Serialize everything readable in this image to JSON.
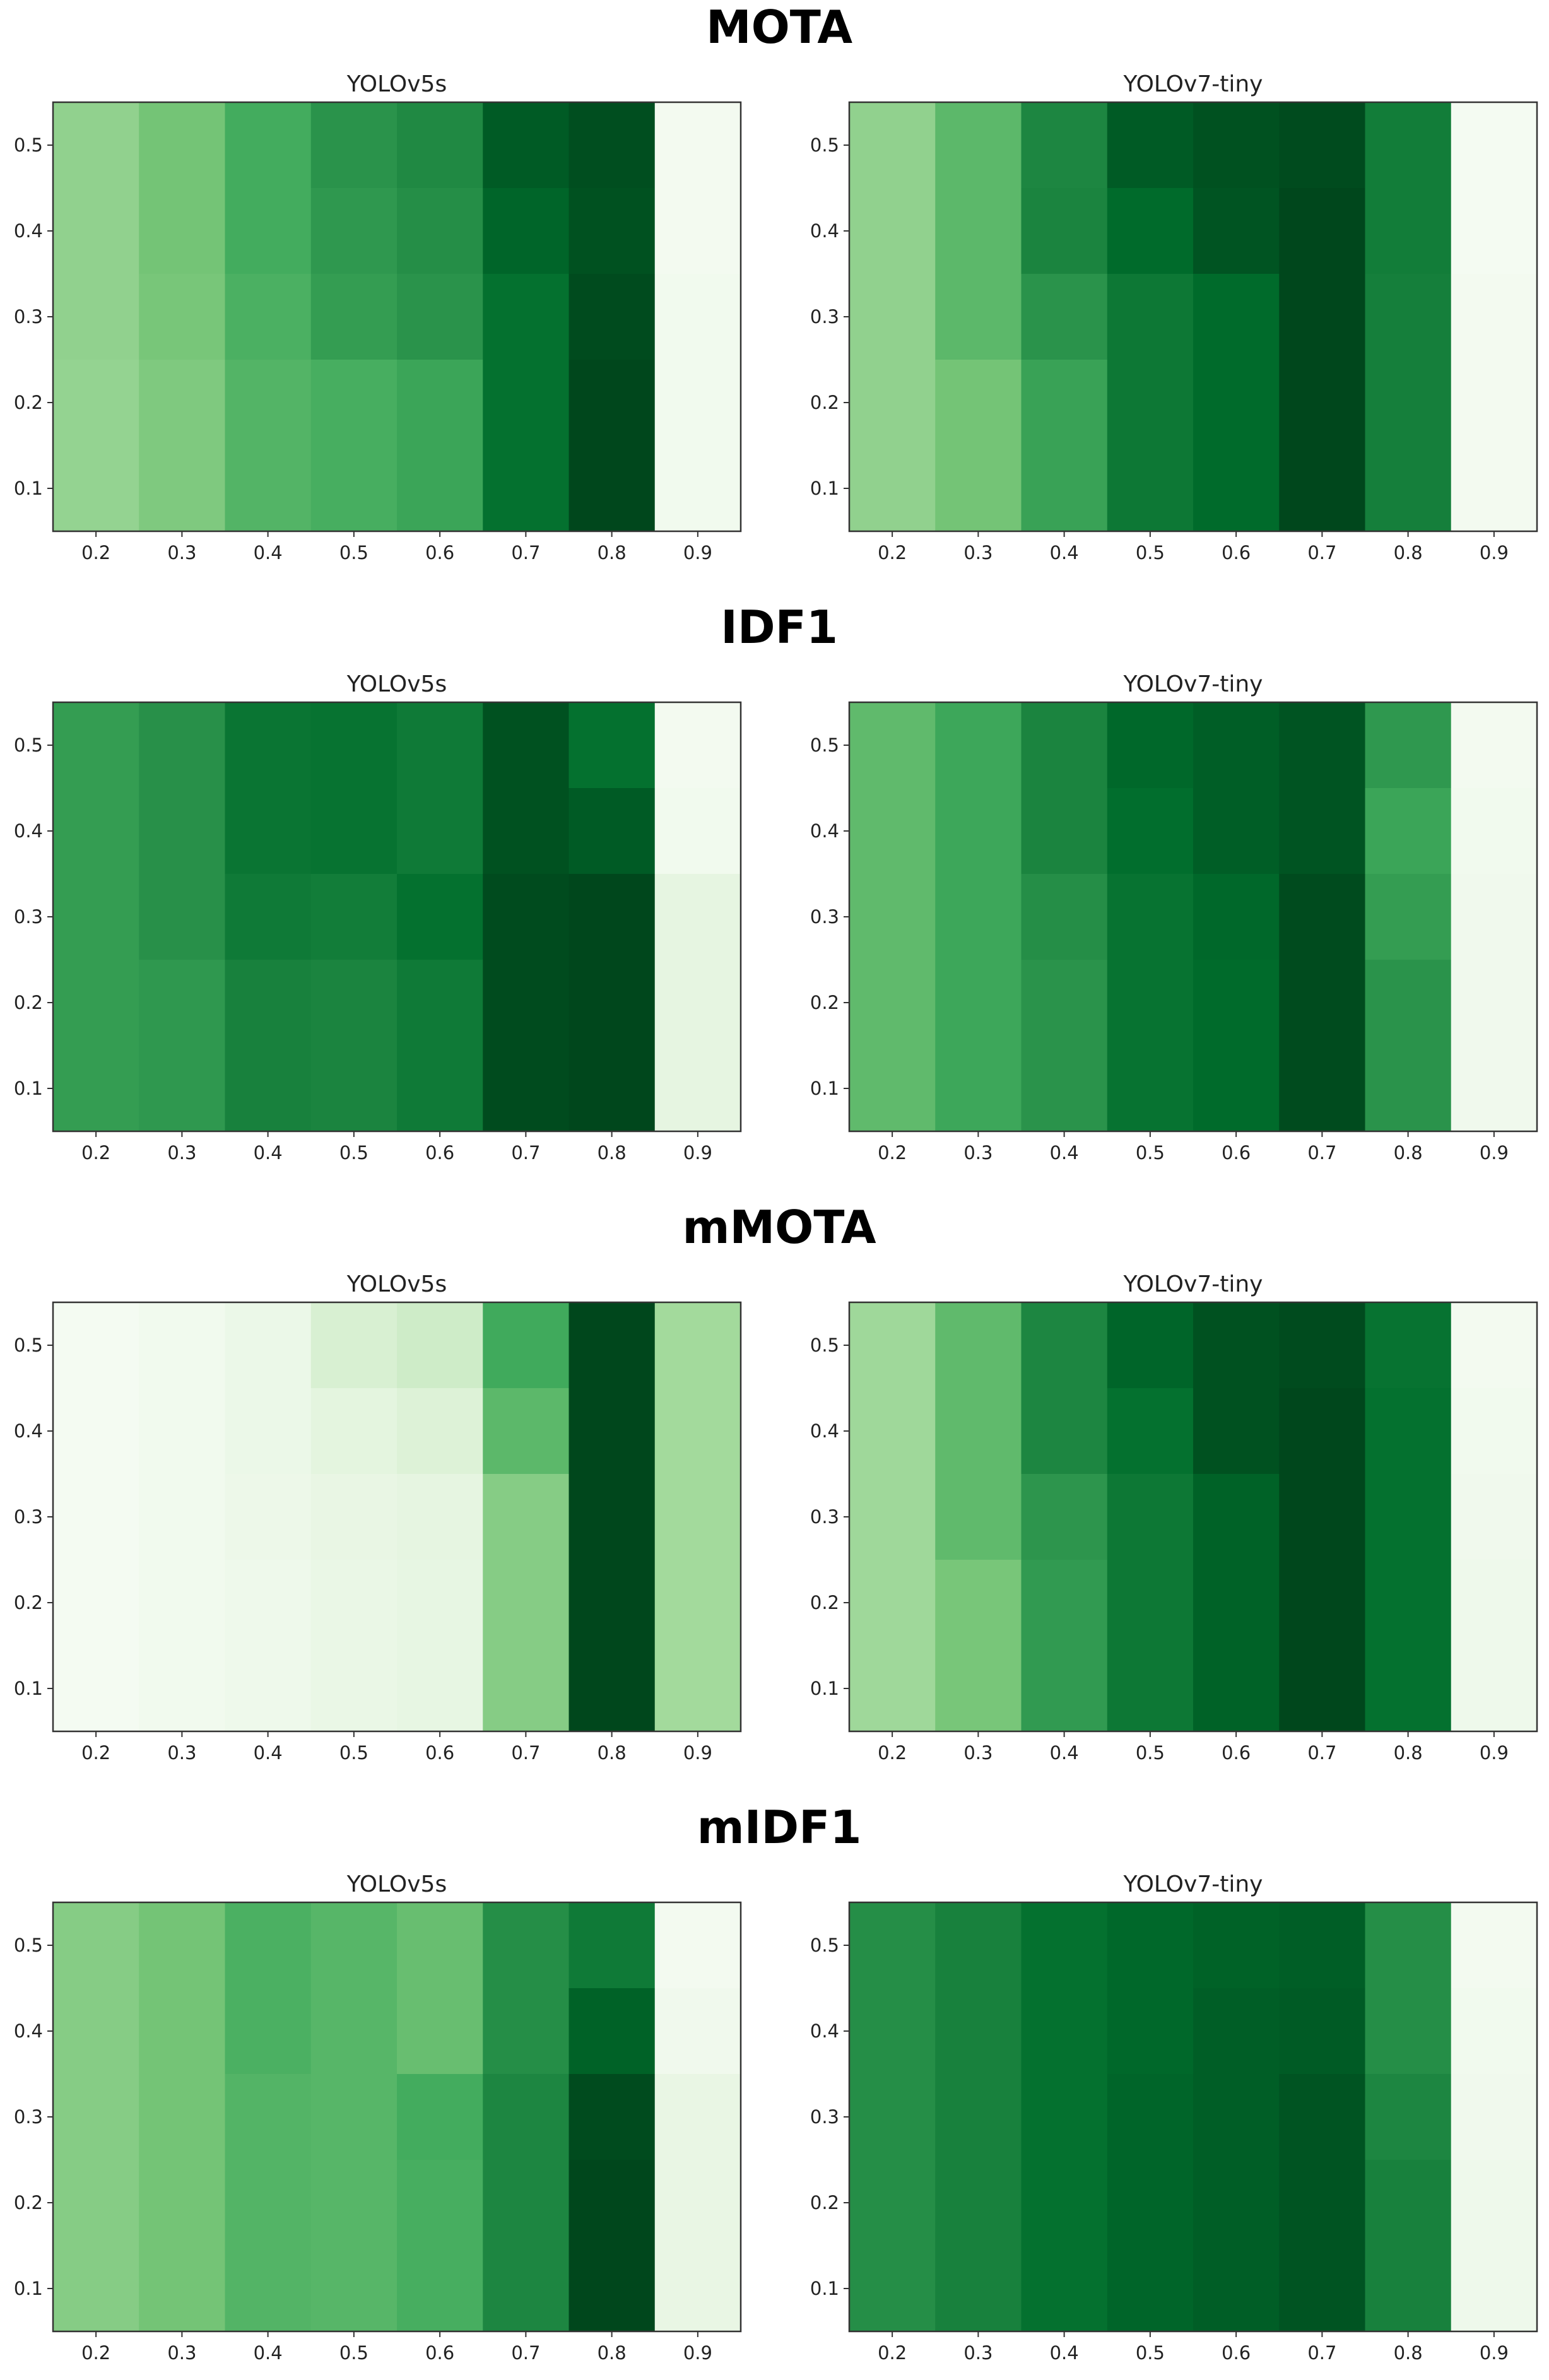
{
  "page": {
    "description_free": true
  },
  "chart_data": [
    {
      "type": "heatmap",
      "metric": "MOTA",
      "section_title": "MOTA",
      "panels": [
        {
          "title": "YOLOv5s",
          "x_ticks": [
            "0.2",
            "0.3",
            "0.4",
            "0.5",
            "0.6",
            "0.7",
            "0.8",
            "0.9"
          ],
          "y_ticks": [
            "0.5",
            "0.4",
            "0.3",
            "0.2",
            "0.1"
          ],
          "colormap": "Greens",
          "intensity_rows_top_to_bottom": [
            [
              0.42,
              0.5,
              0.62,
              0.72,
              0.76,
              0.93,
              0.97,
              0.03
            ],
            [
              0.42,
              0.5,
              0.62,
              0.7,
              0.74,
              0.9,
              0.96,
              0.03
            ],
            [
              0.42,
              0.49,
              0.6,
              0.68,
              0.72,
              0.86,
              0.98,
              0.04
            ],
            [
              0.41,
              0.47,
              0.58,
              0.61,
              0.65,
              0.86,
              0.99,
              0.04
            ],
            [
              0.41,
              0.47,
              0.58,
              0.61,
              0.65,
              0.86,
              0.99,
              0.04
            ]
          ]
        },
        {
          "title": "YOLOv7-tiny",
          "x_ticks": [
            "0.2",
            "0.3",
            "0.4",
            "0.5",
            "0.6",
            "0.7",
            "0.8",
            "0.9"
          ],
          "y_ticks": [
            "0.5",
            "0.4",
            "0.3",
            "0.2",
            "0.1"
          ],
          "colormap": "Greens",
          "intensity_rows_top_to_bottom": [
            [
              0.42,
              0.56,
              0.77,
              0.93,
              0.96,
              0.98,
              0.81,
              0.02
            ],
            [
              0.42,
              0.56,
              0.78,
              0.88,
              0.95,
              0.99,
              0.81,
              0.02
            ],
            [
              0.42,
              0.56,
              0.72,
              0.83,
              0.88,
              0.99,
              0.8,
              0.03
            ],
            [
              0.42,
              0.5,
              0.66,
              0.83,
              0.88,
              0.99,
              0.8,
              0.03
            ],
            [
              0.42,
              0.5,
              0.66,
              0.83,
              0.88,
              0.99,
              0.8,
              0.03
            ]
          ]
        }
      ]
    },
    {
      "type": "heatmap",
      "metric": "IDF1",
      "section_title": "IDF1",
      "panels": [
        {
          "title": "YOLOv5s",
          "x_ticks": [
            "0.2",
            "0.3",
            "0.4",
            "0.5",
            "0.6",
            "0.7",
            "0.8",
            "0.9"
          ],
          "y_ticks": [
            "0.5",
            "0.4",
            "0.3",
            "0.2",
            "0.1"
          ],
          "colormap": "Greens",
          "intensity_rows_top_to_bottom": [
            [
              0.68,
              0.73,
              0.84,
              0.85,
              0.82,
              0.96,
              0.86,
              0.03
            ],
            [
              0.68,
              0.73,
              0.84,
              0.85,
              0.82,
              0.96,
              0.93,
              0.04
            ],
            [
              0.68,
              0.73,
              0.82,
              0.81,
              0.86,
              0.98,
              0.99,
              0.12
            ],
            [
              0.68,
              0.7,
              0.79,
              0.78,
              0.82,
              0.98,
              0.99,
              0.12
            ],
            [
              0.68,
              0.7,
              0.79,
              0.78,
              0.82,
              0.98,
              0.99,
              0.12
            ]
          ]
        },
        {
          "title": "YOLOv7-tiny",
          "x_ticks": [
            "0.2",
            "0.3",
            "0.4",
            "0.5",
            "0.6",
            "0.7",
            "0.8",
            "0.9"
          ],
          "y_ticks": [
            "0.5",
            "0.4",
            "0.3",
            "0.2",
            "0.1"
          ],
          "colormap": "Greens",
          "intensity_rows_top_to_bottom": [
            [
              0.55,
              0.64,
              0.78,
              0.89,
              0.92,
              0.95,
              0.7,
              0.03
            ],
            [
              0.55,
              0.64,
              0.78,
              0.87,
              0.92,
              0.95,
              0.65,
              0.04
            ],
            [
              0.55,
              0.64,
              0.74,
              0.85,
              0.89,
              0.98,
              0.68,
              0.05
            ],
            [
              0.55,
              0.64,
              0.72,
              0.85,
              0.88,
              0.98,
              0.72,
              0.05
            ],
            [
              0.55,
              0.64,
              0.72,
              0.85,
              0.88,
              0.98,
              0.72,
              0.05
            ]
          ]
        }
      ]
    },
    {
      "type": "heatmap",
      "metric": "mMOTA",
      "section_title": "mMOTA",
      "panels": [
        {
          "title": "YOLOv5s",
          "x_ticks": [
            "0.2",
            "0.3",
            "0.4",
            "0.5",
            "0.6",
            "0.7",
            "0.8",
            "0.9"
          ],
          "y_ticks": [
            "0.5",
            "0.4",
            "0.3",
            "0.2",
            "0.1"
          ],
          "colormap": "Greens",
          "intensity_rows_top_to_bottom": [
            [
              0.02,
              0.04,
              0.08,
              0.18,
              0.22,
              0.63,
              0.99,
              0.37
            ],
            [
              0.02,
              0.04,
              0.08,
              0.13,
              0.16,
              0.56,
              0.99,
              0.37
            ],
            [
              0.02,
              0.04,
              0.07,
              0.1,
              0.12,
              0.45,
              0.99,
              0.37
            ],
            [
              0.02,
              0.04,
              0.06,
              0.09,
              0.11,
              0.45,
              0.99,
              0.37
            ],
            [
              0.02,
              0.04,
              0.06,
              0.09,
              0.11,
              0.45,
              0.99,
              0.37
            ]
          ]
        },
        {
          "title": "YOLOv7-tiny",
          "x_ticks": [
            "0.2",
            "0.3",
            "0.4",
            "0.5",
            "0.6",
            "0.7",
            "0.8",
            "0.9"
          ],
          "y_ticks": [
            "0.5",
            "0.4",
            "0.3",
            "0.2",
            "0.1"
          ],
          "colormap": "Greens",
          "intensity_rows_top_to_bottom": [
            [
              0.38,
              0.55,
              0.77,
              0.9,
              0.96,
              0.98,
              0.85,
              0.03
            ],
            [
              0.38,
              0.55,
              0.77,
              0.86,
              0.96,
              0.99,
              0.86,
              0.04
            ],
            [
              0.38,
              0.55,
              0.71,
              0.83,
              0.91,
              0.99,
              0.86,
              0.05
            ],
            [
              0.38,
              0.49,
              0.69,
              0.83,
              0.91,
              0.99,
              0.86,
              0.06
            ],
            [
              0.38,
              0.49,
              0.69,
              0.83,
              0.91,
              0.99,
              0.86,
              0.06
            ]
          ]
        }
      ]
    },
    {
      "type": "heatmap",
      "metric": "mIDF1",
      "section_title": "mIDF1",
      "panels": [
        {
          "title": "YOLOv5s",
          "x_ticks": [
            "0.2",
            "0.3",
            "0.4",
            "0.5",
            "0.6",
            "0.7",
            "0.8",
            "0.9"
          ],
          "y_ticks": [
            "0.5",
            "0.4",
            "0.3",
            "0.2",
            "0.1"
          ],
          "colormap": "Greens",
          "intensity_rows_top_to_bottom": [
            [
              0.45,
              0.5,
              0.6,
              0.57,
              0.53,
              0.74,
              0.82,
              0.03
            ],
            [
              0.45,
              0.5,
              0.6,
              0.57,
              0.53,
              0.74,
              0.91,
              0.05
            ],
            [
              0.45,
              0.5,
              0.58,
              0.57,
              0.62,
              0.77,
              0.98,
              0.1
            ],
            [
              0.45,
              0.5,
              0.58,
              0.57,
              0.61,
              0.77,
              0.99,
              0.1
            ],
            [
              0.45,
              0.5,
              0.58,
              0.57,
              0.61,
              0.77,
              0.99,
              0.1
            ]
          ]
        },
        {
          "title": "YOLOv7-tiny",
          "x_ticks": [
            "0.2",
            "0.3",
            "0.4",
            "0.5",
            "0.6",
            "0.7",
            "0.8",
            "0.9"
          ],
          "y_ticks": [
            "0.5",
            "0.4",
            "0.3",
            "0.2",
            "0.1"
          ],
          "colormap": "Greens",
          "intensity_rows_top_to_bottom": [
            [
              0.74,
              0.79,
              0.86,
              0.89,
              0.91,
              0.92,
              0.74,
              0.03
            ],
            [
              0.74,
              0.79,
              0.86,
              0.89,
              0.92,
              0.93,
              0.74,
              0.04
            ],
            [
              0.74,
              0.79,
              0.86,
              0.9,
              0.92,
              0.95,
              0.77,
              0.05
            ],
            [
              0.74,
              0.79,
              0.86,
              0.9,
              0.92,
              0.95,
              0.79,
              0.06
            ],
            [
              0.74,
              0.79,
              0.86,
              0.9,
              0.92,
              0.95,
              0.79,
              0.06
            ]
          ]
        }
      ]
    }
  ]
}
